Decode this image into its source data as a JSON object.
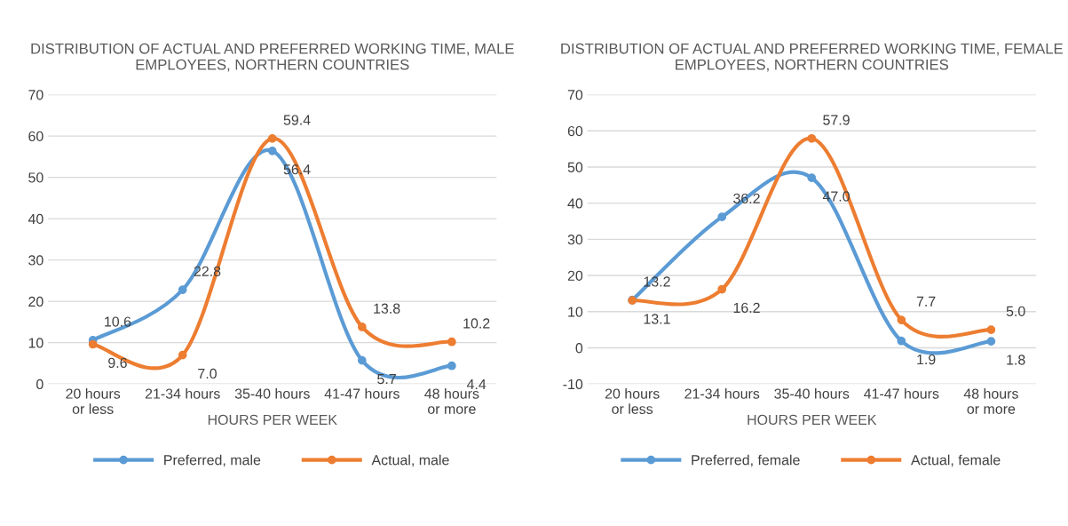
{
  "chart_data": [
    {
      "type": "line",
      "title": "DISTRIBUTION OF ACTUAL AND PREFERRED WORKING TIME, MALE EMPLOYEES, NORTHERN COUNTRIES",
      "xlabel": "HOURS PER WEEK",
      "categories": [
        "20 hours or less",
        "21-34 hours",
        "35-40 hours",
        "41-47 hours",
        "48 hours or more"
      ],
      "series": [
        {
          "name": "Preferred, male",
          "color": "#5b9bd5",
          "values": [
            10.6,
            22.8,
            56.4,
            5.7,
            4.4
          ],
          "value_labels": [
            "10.6",
            "22.8",
            "56.4",
            "5.7",
            "4.4"
          ]
        },
        {
          "name": "Actual, male",
          "color": "#ed7d31",
          "values": [
            9.6,
            7.0,
            59.4,
            13.8,
            10.2
          ],
          "value_labels": [
            "9.6",
            "7.0",
            "59.4",
            "13.8",
            "10.2"
          ]
        }
      ],
      "ylim": [
        0,
        70
      ],
      "yticks": [
        0,
        10,
        20,
        30,
        40,
        50,
        60,
        70
      ],
      "grid": "y",
      "legend": "bottom",
      "marker": "circle",
      "line_style": "solid"
    },
    {
      "type": "line",
      "title": "DISTRIBUTION OF ACTUAL AND PREFERRED WORKING TIME, FEMALE EMPLOYEES, NORTHERN COUNTRIES",
      "xlabel": "HOURS PER WEEK",
      "categories": [
        "20 hours or less",
        "21-34 hours",
        "35-40 hours",
        "41-47 hours",
        "48 hours or more"
      ],
      "series": [
        {
          "name": "Preferred, female",
          "color": "#5b9bd5",
          "values": [
            13.2,
            36.2,
            47.0,
            1.9,
            1.8
          ],
          "value_labels": [
            "13.2",
            "36.2",
            "47.0",
            "1.9",
            "1.8"
          ]
        },
        {
          "name": "Actual, female",
          "color": "#ed7d31",
          "values": [
            13.1,
            16.2,
            57.9,
            7.7,
            5.0
          ],
          "value_labels": [
            "13.1",
            "16.2",
            "57.9",
            "7.7",
            "5.0"
          ]
        }
      ],
      "ylim": [
        -10,
        70
      ],
      "yticks": [
        -10,
        0,
        10,
        20,
        30,
        40,
        50,
        60,
        70
      ],
      "grid": "y",
      "legend": "bottom",
      "marker": "circle",
      "line_style": "solid"
    }
  ]
}
